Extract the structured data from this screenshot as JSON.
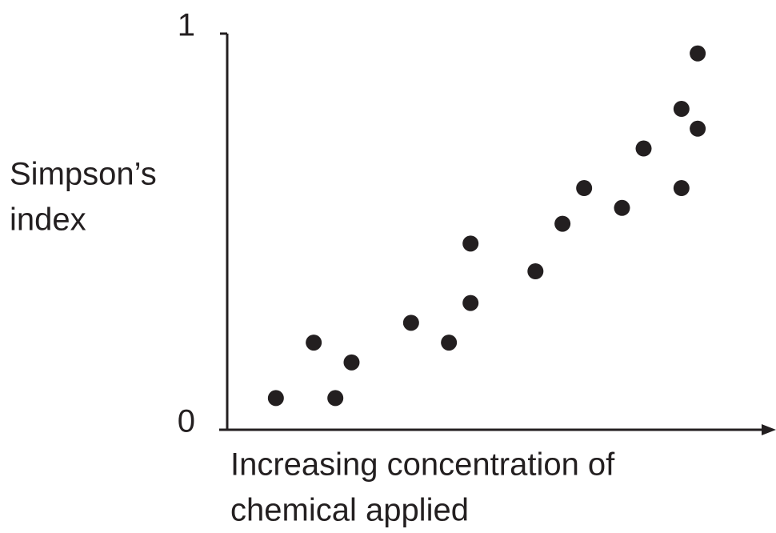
{
  "chart_data": {
    "type": "scatter",
    "ylabel": [
      "Simpson’s",
      "index"
    ],
    "xlabel": [
      "Increasing concentration of",
      "chemical applied"
    ],
    "xlim": [
      0,
      1
    ],
    "ylim": [
      0,
      1
    ],
    "yticks": [
      0,
      1
    ],
    "color": "#231f20",
    "x": [
      0.09,
      0.16,
      0.2,
      0.23,
      0.34,
      0.41,
      0.45,
      0.45,
      0.57,
      0.62,
      0.66,
      0.73,
      0.77,
      0.84,
      0.84,
      0.87,
      0.87
    ],
    "values": [
      0.08,
      0.22,
      0.08,
      0.17,
      0.27,
      0.22,
      0.47,
      0.32,
      0.4,
      0.52,
      0.61,
      0.56,
      0.71,
      0.81,
      0.61,
      0.95,
      0.76
    ]
  }
}
